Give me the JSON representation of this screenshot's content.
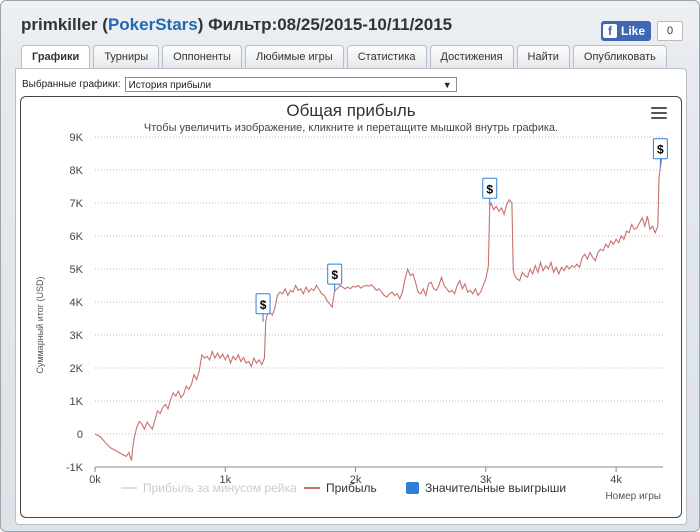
{
  "header": {
    "player": "primkiller",
    "site_open": "(",
    "site": "PokerStars",
    "site_close": ")",
    "filter": "Фильтр:08/25/2015-10/11/2015"
  },
  "facebook": {
    "like_label": "Like",
    "count": "0",
    "f": "f"
  },
  "tabs": [
    {
      "label": "Графики",
      "active": true
    },
    {
      "label": "Турниры"
    },
    {
      "label": "Оппоненты"
    },
    {
      "label": "Любимые игры"
    },
    {
      "label": "Статистика"
    },
    {
      "label": "Достижения"
    },
    {
      "label": "Найти"
    },
    {
      "label": "Опубликовать"
    }
  ],
  "selector": {
    "label": "Выбранные графики:",
    "value": "История прибыли",
    "arrow": "▼"
  },
  "chart_data": {
    "type": "line",
    "title": "Общая прибыль",
    "subtitle": "Чтобы увеличить изображение, кликните и перетащите мышкой внутрь графика.",
    "ylabel": "Суммарный итог (USD)",
    "xlabel": "Номер игры",
    "ylim": [
      -1000,
      9000
    ],
    "xlim": [
      0,
      4360
    ],
    "y_ticks": [
      {
        "v": -1000,
        "label": "-1K"
      },
      {
        "v": 0,
        "label": "0"
      },
      {
        "v": 1000,
        "label": "1K"
      },
      {
        "v": 2000,
        "label": "2K"
      },
      {
        "v": 3000,
        "label": "3K"
      },
      {
        "v": 4000,
        "label": "4K"
      },
      {
        "v": 5000,
        "label": "5K"
      },
      {
        "v": 6000,
        "label": "6K"
      },
      {
        "v": 7000,
        "label": "7K"
      },
      {
        "v": 8000,
        "label": "8K"
      },
      {
        "v": 9000,
        "label": "9K"
      }
    ],
    "x_ticks": [
      {
        "v": 0,
        "label": "0k"
      },
      {
        "v": 1000,
        "label": "1k"
      },
      {
        "v": 2000,
        "label": "2k"
      },
      {
        "v": 3000,
        "label": "3k"
      },
      {
        "v": 4000,
        "label": "4k"
      }
    ],
    "grid": "horizontal dotted",
    "legend": [
      {
        "name": "Прибыль за минусом рейка",
        "color": "#dddddd",
        "kind": "line",
        "muted": true
      },
      {
        "name": "Прибыль",
        "color": "#c97070",
        "kind": "line"
      },
      {
        "name": "Значительные выигрыши",
        "color": "#2f7ed8",
        "kind": "box"
      }
    ],
    "series": [
      {
        "name": "Прибыль",
        "color": "#c97070",
        "points": [
          [
            0,
            0
          ],
          [
            40,
            -80
          ],
          [
            80,
            -260
          ],
          [
            120,
            -420
          ],
          [
            160,
            -500
          ],
          [
            200,
            -600
          ],
          [
            240,
            -680
          ],
          [
            260,
            -560
          ],
          [
            270,
            -700
          ],
          [
            280,
            -800
          ],
          [
            290,
            -400
          ],
          [
            300,
            -150
          ],
          [
            320,
            200
          ],
          [
            340,
            380
          ],
          [
            360,
            300
          ],
          [
            380,
            150
          ],
          [
            400,
            360
          ],
          [
            420,
            250
          ],
          [
            440,
            150
          ],
          [
            460,
            420
          ],
          [
            480,
            700
          ],
          [
            500,
            620
          ],
          [
            520,
            800
          ],
          [
            540,
            900
          ],
          [
            560,
            760
          ],
          [
            580,
            1050
          ],
          [
            600,
            1250
          ],
          [
            620,
            1150
          ],
          [
            640,
            1300
          ],
          [
            660,
            1100
          ],
          [
            680,
            1200
          ],
          [
            700,
            1450
          ],
          [
            720,
            1350
          ],
          [
            740,
            1500
          ],
          [
            760,
            1800
          ],
          [
            780,
            1650
          ],
          [
            800,
            1900
          ],
          [
            820,
            2400
          ],
          [
            840,
            2300
          ],
          [
            860,
            2350
          ],
          [
            880,
            2250
          ],
          [
            900,
            2500
          ],
          [
            920,
            2300
          ],
          [
            940,
            2450
          ],
          [
            960,
            2300
          ],
          [
            980,
            2420
          ],
          [
            1000,
            2250
          ],
          [
            1020,
            2400
          ],
          [
            1040,
            2150
          ],
          [
            1060,
            2350
          ],
          [
            1080,
            2250
          ],
          [
            1100,
            2400
          ],
          [
            1120,
            2200
          ],
          [
            1140,
            2320
          ],
          [
            1160,
            2150
          ],
          [
            1180,
            2200
          ],
          [
            1200,
            2050
          ],
          [
            1220,
            2300
          ],
          [
            1240,
            2150
          ],
          [
            1260,
            2250
          ],
          [
            1280,
            2100
          ],
          [
            1300,
            2300
          ],
          [
            1310,
            3400
          ],
          [
            1320,
            3600
          ],
          [
            1340,
            3700
          ],
          [
            1360,
            3600
          ],
          [
            1380,
            3800
          ],
          [
            1400,
            4200
          ],
          [
            1420,
            4300
          ],
          [
            1440,
            4250
          ],
          [
            1460,
            4400
          ],
          [
            1480,
            4200
          ],
          [
            1500,
            4350
          ],
          [
            1520,
            4300
          ],
          [
            1540,
            4500
          ],
          [
            1560,
            4350
          ],
          [
            1580,
            4400
          ],
          [
            1600,
            4250
          ],
          [
            1620,
            4450
          ],
          [
            1640,
            4300
          ],
          [
            1660,
            4400
          ],
          [
            1680,
            4350
          ],
          [
            1700,
            4500
          ],
          [
            1720,
            4380
          ],
          [
            1740,
            4250
          ],
          [
            1760,
            4200
          ],
          [
            1780,
            4050
          ],
          [
            1800,
            3950
          ],
          [
            1820,
            3850
          ],
          [
            1840,
            4350
          ],
          [
            1860,
            4400
          ],
          [
            1880,
            4500
          ],
          [
            1900,
            4450
          ],
          [
            1920,
            4400
          ],
          [
            1940,
            4450
          ],
          [
            1960,
            4400
          ],
          [
            1980,
            4480
          ],
          [
            2000,
            4450
          ],
          [
            2020,
            4500
          ],
          [
            2040,
            4420
          ],
          [
            2060,
            4480
          ],
          [
            2080,
            4500
          ],
          [
            2100,
            4480
          ],
          [
            2120,
            4520
          ],
          [
            2140,
            4450
          ],
          [
            2160,
            4350
          ],
          [
            2180,
            4400
          ],
          [
            2200,
            4300
          ],
          [
            2220,
            4200
          ],
          [
            2240,
            4150
          ],
          [
            2260,
            4250
          ],
          [
            2280,
            4300
          ],
          [
            2300,
            4200
          ],
          [
            2320,
            4250
          ],
          [
            2340,
            4100
          ],
          [
            2360,
            4300
          ],
          [
            2380,
            4700
          ],
          [
            2400,
            5000
          ],
          [
            2420,
            4800
          ],
          [
            2440,
            4850
          ],
          [
            2460,
            4600
          ],
          [
            2480,
            4300
          ],
          [
            2500,
            4250
          ],
          [
            2520,
            4400
          ],
          [
            2540,
            4200
          ],
          [
            2560,
            4550
          ],
          [
            2580,
            4600
          ],
          [
            2600,
            4400
          ],
          [
            2620,
            4350
          ],
          [
            2640,
            4500
          ],
          [
            2660,
            4750
          ],
          [
            2680,
            4500
          ],
          [
            2700,
            4400
          ],
          [
            2720,
            4300
          ],
          [
            2740,
            4350
          ],
          [
            2760,
            4250
          ],
          [
            2780,
            4500
          ],
          [
            2800,
            4650
          ],
          [
            2820,
            4400
          ],
          [
            2840,
            4550
          ],
          [
            2860,
            4300
          ],
          [
            2880,
            4350
          ],
          [
            2900,
            4250
          ],
          [
            2920,
            4400
          ],
          [
            2940,
            4200
          ],
          [
            2960,
            4300
          ],
          [
            3000,
            4700
          ],
          [
            3020,
            5100
          ],
          [
            3030,
            6900
          ],
          [
            3040,
            7000
          ],
          [
            3060,
            6800
          ],
          [
            3080,
            6900
          ],
          [
            3100,
            6750
          ],
          [
            3120,
            6850
          ],
          [
            3140,
            6650
          ],
          [
            3160,
            6950
          ],
          [
            3180,
            7100
          ],
          [
            3200,
            7000
          ],
          [
            3210,
            5000
          ],
          [
            3220,
            4800
          ],
          [
            3240,
            4700
          ],
          [
            3260,
            4650
          ],
          [
            3280,
            4900
          ],
          [
            3300,
            4800
          ],
          [
            3320,
            4750
          ],
          [
            3340,
            5000
          ],
          [
            3360,
            4850
          ],
          [
            3380,
            5100
          ],
          [
            3400,
            4900
          ],
          [
            3420,
            5200
          ],
          [
            3440,
            4950
          ],
          [
            3460,
            5100
          ],
          [
            3480,
            5000
          ],
          [
            3500,
            5200
          ],
          [
            3520,
            4900
          ],
          [
            3540,
            5050
          ],
          [
            3560,
            4850
          ],
          [
            3580,
            5050
          ],
          [
            3600,
            4950
          ],
          [
            3620,
            5100
          ],
          [
            3640,
            5000
          ],
          [
            3660,
            5100
          ],
          [
            3680,
            5050
          ],
          [
            3700,
            5150
          ],
          [
            3720,
            5050
          ],
          [
            3740,
            5350
          ],
          [
            3760,
            5450
          ],
          [
            3780,
            5300
          ],
          [
            3800,
            5500
          ],
          [
            3820,
            5350
          ],
          [
            3840,
            5250
          ],
          [
            3860,
            5500
          ],
          [
            3880,
            5600
          ],
          [
            3900,
            5550
          ],
          [
            3920,
            5750
          ],
          [
            3940,
            5650
          ],
          [
            3960,
            5850
          ],
          [
            3980,
            5750
          ],
          [
            4000,
            5900
          ],
          [
            4020,
            5800
          ],
          [
            4040,
            6000
          ],
          [
            4060,
            5900
          ],
          [
            4080,
            6150
          ],
          [
            4100,
            6100
          ],
          [
            4120,
            6350
          ],
          [
            4140,
            6200
          ],
          [
            4160,
            6250
          ],
          [
            4180,
            6400
          ],
          [
            4200,
            6550
          ],
          [
            4220,
            6300
          ],
          [
            4240,
            6600
          ],
          [
            4260,
            6200
          ],
          [
            4280,
            6300
          ],
          [
            4300,
            6100
          ],
          [
            4320,
            6300
          ],
          [
            4330,
            7800
          ],
          [
            4340,
            8100
          ],
          [
            4350,
            8350
          ]
        ]
      }
    ],
    "big_wins": [
      {
        "x": 1290,
        "y": 3400,
        "label": "$"
      },
      {
        "x": 1840,
        "y": 4300,
        "label": "$"
      },
      {
        "x": 3030,
        "y": 6900,
        "label": "$"
      },
      {
        "x": 4340,
        "y": 8100,
        "label": "$"
      }
    ]
  }
}
